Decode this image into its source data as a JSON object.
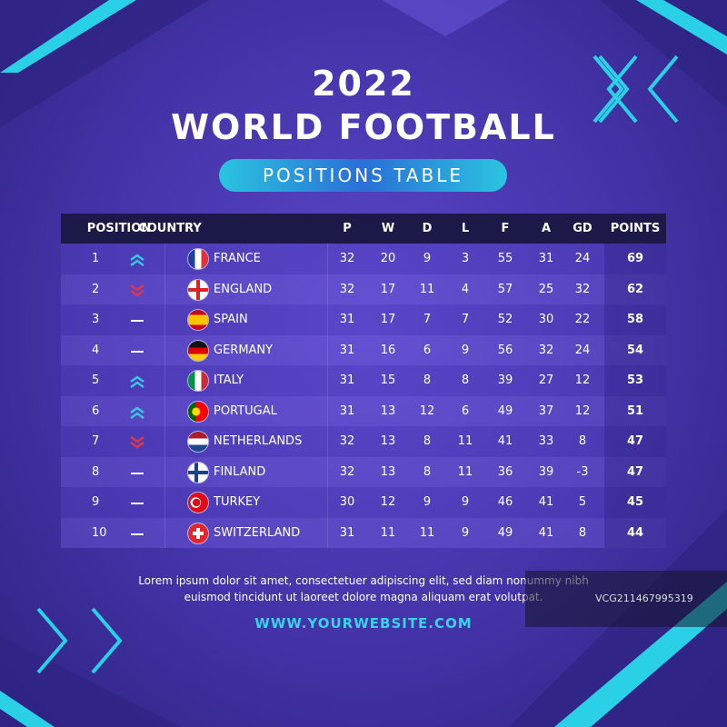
{
  "header": {
    "year": "2022",
    "title": "WORLD FOOTBALL",
    "subtitle": "POSITIONS TABLE"
  },
  "table": {
    "columns": [
      "POSITION",
      "COUNTRY",
      "P",
      "W",
      "D",
      "L",
      "F",
      "A",
      "GD",
      "POINTS"
    ],
    "rows": [
      [
        1,
        "FRANCE",
        32,
        20,
        9,
        3,
        55,
        31,
        24,
        69
      ],
      [
        2,
        "ENGLAND",
        32,
        17,
        11,
        4,
        57,
        25,
        32,
        62
      ],
      [
        3,
        "SPAIN",
        31,
        17,
        7,
        7,
        52,
        30,
        22,
        58
      ],
      [
        4,
        "GERMANY",
        31,
        16,
        6,
        9,
        56,
        32,
        24,
        54
      ],
      [
        5,
        "ITALY",
        31,
        15,
        8,
        8,
        39,
        27,
        12,
        53
      ],
      [
        6,
        "PORTUGAL",
        31,
        13,
        12,
        6,
        49,
        37,
        12,
        51
      ],
      [
        7,
        "NETHERLANDS",
        32,
        13,
        8,
        11,
        41,
        33,
        8,
        47
      ],
      [
        8,
        "FINLAND",
        32,
        13,
        8,
        11,
        36,
        39,
        -3,
        47
      ],
      [
        9,
        "TURKEY",
        30,
        12,
        9,
        9,
        46,
        41,
        5,
        45
      ],
      [
        10,
        "SWITZERLAND",
        31,
        11,
        11,
        9,
        49,
        41,
        8,
        44
      ]
    ],
    "trends": [
      "up",
      "down",
      "none",
      "none",
      "up",
      "up",
      "down",
      "none",
      "none",
      "none"
    ]
  },
  "footer": {
    "text": [
      "Lorem ipsum dolor sit amet, consectetuer adipiscing elit, sed diam nonummy nibh",
      "euismod tincidunt ut laoreet dolore magna aliquam erat volutpat."
    ],
    "website": "WWW.YOURWEBSITE.COM",
    "watermark": "VCG211467995319"
  }
}
